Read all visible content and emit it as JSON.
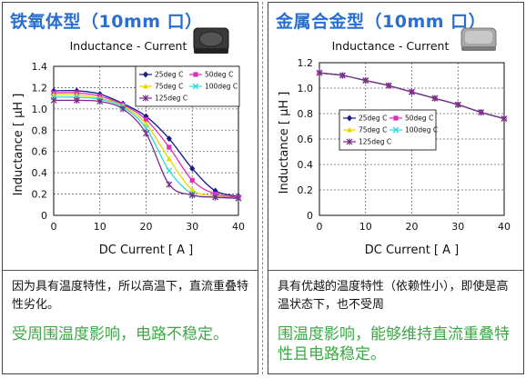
{
  "panels": [
    {
      "title": "铁氧体型（10mm 口）",
      "description": "因为具有温度特性，所以高温下，直流重叠特性劣化。",
      "highlight": "受周围温度影响，电路不稳定。"
    },
    {
      "title": "金属合金型（10mm 口）",
      "description": "具有优越的温度特性（依赖性小），即使是高温状态下，也不受周",
      "highlight": "围温度影响，能够维持直流重叠特性且电路稳定。"
    }
  ],
  "chart_data": [
    {
      "type": "line",
      "title": "Inductance - Current",
      "xlabel": "DC Current [ A ]",
      "ylabel": "Inductance [ μH ]",
      "xlim": [
        0,
        40
      ],
      "ylim": [
        0,
        1.4
      ],
      "xticks": [
        0,
        10,
        20,
        30,
        40
      ],
      "yticks": [
        0,
        0.2,
        0.4,
        0.6,
        0.8,
        1.0,
        1.2,
        1.4
      ],
      "ytick_labels": [
        "0",
        "0.2",
        "0.4",
        "0.6",
        "0.8",
        "1.0",
        "1.2",
        "1.4"
      ],
      "legend_position": "top-right",
      "series": [
        {
          "name": "25deg C",
          "color": "#1a1a8c",
          "marker": "diamond",
          "x": [
            0,
            5,
            10,
            15,
            20,
            25,
            30,
            35,
            40
          ],
          "y": [
            1.17,
            1.17,
            1.14,
            1.05,
            0.93,
            0.72,
            0.44,
            0.23,
            0.18
          ]
        },
        {
          "name": "50deg C",
          "color": "#e02cb8",
          "marker": "square",
          "x": [
            0,
            5,
            10,
            15,
            20,
            25,
            30,
            35,
            40
          ],
          "y": [
            1.15,
            1.15,
            1.12,
            1.04,
            0.9,
            0.64,
            0.33,
            0.2,
            0.17
          ]
        },
        {
          "name": "75deg C",
          "color": "#e8d800",
          "marker": "triangle",
          "x": [
            0,
            5,
            10,
            15,
            20,
            25,
            30,
            35,
            40
          ],
          "y": [
            1.13,
            1.13,
            1.1,
            1.03,
            0.86,
            0.53,
            0.24,
            0.18,
            0.16
          ]
        },
        {
          "name": "100deg C",
          "color": "#33d6d6",
          "marker": "cross",
          "x": [
            0,
            5,
            10,
            15,
            20,
            25,
            30,
            35,
            40
          ],
          "y": [
            1.11,
            1.11,
            1.09,
            1.02,
            0.82,
            0.42,
            0.2,
            0.17,
            0.16
          ]
        },
        {
          "name": "125deg C",
          "color": "#7a2a8c",
          "marker": "star",
          "x": [
            0,
            5,
            10,
            15,
            20,
            25,
            30,
            35,
            40
          ],
          "y": [
            1.08,
            1.08,
            1.07,
            1.0,
            0.77,
            0.29,
            0.19,
            0.17,
            0.16
          ]
        }
      ]
    },
    {
      "type": "line",
      "title": "Inductance - Current",
      "xlabel": "DC Current [ A ]",
      "ylabel": "Inductance [ μH ]",
      "xlim": [
        0,
        40
      ],
      "ylim": [
        0,
        1.2
      ],
      "xticks": [
        0,
        10,
        20,
        30,
        40
      ],
      "yticks": [
        0,
        0.2,
        0.4,
        0.6,
        0.8,
        1.0,
        1.2
      ],
      "ytick_labels": [
        "0",
        "0.2",
        "0.4",
        "0.6",
        "0.8",
        "1.0",
        "1.2"
      ],
      "legend_position": "center",
      "series": [
        {
          "name": "25deg C",
          "color": "#1a1a8c",
          "marker": "diamond",
          "x": [
            0,
            5,
            10,
            15,
            20,
            25,
            30,
            35,
            40
          ],
          "y": [
            1.12,
            1.1,
            1.06,
            1.02,
            0.97,
            0.92,
            0.87,
            0.81,
            0.76
          ]
        },
        {
          "name": "50deg C",
          "color": "#e02cb8",
          "marker": "square",
          "x": [
            0,
            5,
            10,
            15,
            20,
            25,
            30,
            35,
            40
          ],
          "y": [
            1.12,
            1.1,
            1.06,
            1.02,
            0.97,
            0.92,
            0.87,
            0.81,
            0.76
          ]
        },
        {
          "name": "75deg C",
          "color": "#e8d800",
          "marker": "triangle",
          "x": [
            0,
            5,
            10,
            15,
            20,
            25,
            30,
            35,
            40
          ],
          "y": [
            1.12,
            1.1,
            1.06,
            1.02,
            0.97,
            0.92,
            0.87,
            0.81,
            0.76
          ]
        },
        {
          "name": "100deg C",
          "color": "#33d6d6",
          "marker": "cross",
          "x": [
            0,
            5,
            10,
            15,
            20,
            25,
            30,
            35,
            40
          ],
          "y": [
            1.12,
            1.1,
            1.06,
            1.02,
            0.97,
            0.92,
            0.87,
            0.81,
            0.76
          ]
        },
        {
          "name": "125deg C",
          "color": "#7a2a8c",
          "marker": "star",
          "x": [
            0,
            5,
            10,
            15,
            20,
            25,
            30,
            35,
            40
          ],
          "y": [
            1.12,
            1.1,
            1.06,
            1.02,
            0.97,
            0.92,
            0.87,
            0.81,
            0.76
          ]
        }
      ]
    }
  ]
}
